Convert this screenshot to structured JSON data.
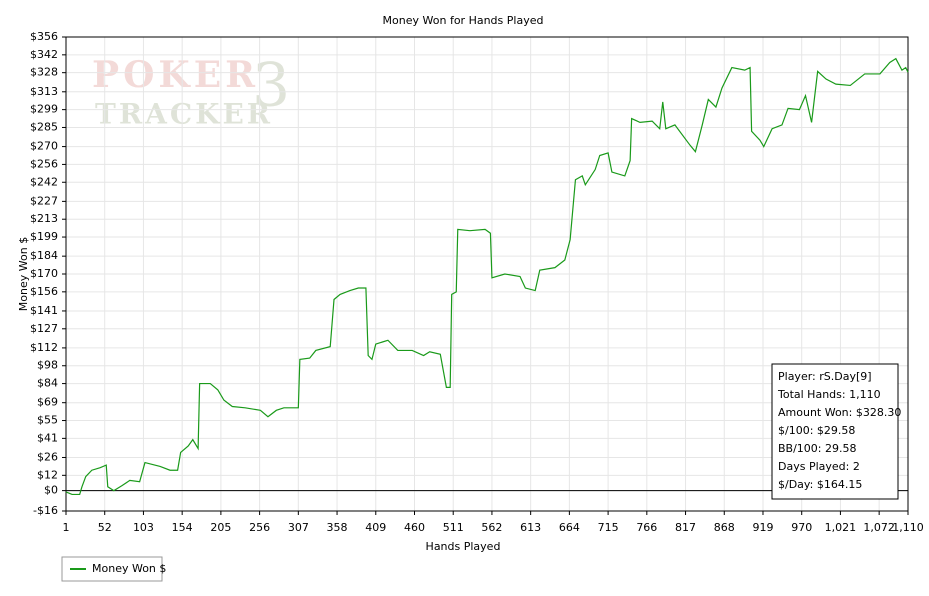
{
  "chart_data": {
    "type": "line",
    "title": "Money Won for Hands Played",
    "x_label": "Hands Played",
    "y_label": "Money Won $",
    "watermark": {
      "line1": "POKER",
      "line2": "TRACKER",
      "mark": "3"
    },
    "xlim": [
      1,
      1110
    ],
    "xticks": [
      1,
      52,
      103,
      154,
      205,
      256,
      307,
      358,
      409,
      460,
      511,
      562,
      613,
      664,
      715,
      766,
      817,
      868,
      919,
      970,
      {
        "value": 1021,
        "label": "1,021"
      },
      {
        "value": 1072,
        "label": "1,072"
      },
      {
        "value": 1110,
        "label": "1,110"
      }
    ],
    "ylim": [
      -16,
      356
    ],
    "yticks": [
      {
        "value": -16,
        "label": "-$16"
      },
      {
        "value": 0,
        "label": "$0"
      },
      {
        "value": 12,
        "label": "$12"
      },
      {
        "value": 26,
        "label": "$26"
      },
      {
        "value": 41,
        "label": "$41"
      },
      {
        "value": 55,
        "label": "$55"
      },
      {
        "value": 69,
        "label": "$69"
      },
      {
        "value": 84,
        "label": "$84"
      },
      {
        "value": 98,
        "label": "$98"
      },
      {
        "value": 112,
        "label": "$112"
      },
      {
        "value": 127,
        "label": "$127"
      },
      {
        "value": 141,
        "label": "$141"
      },
      {
        "value": 156,
        "label": "$156"
      },
      {
        "value": 170,
        "label": "$170"
      },
      {
        "value": 184,
        "label": "$184"
      },
      {
        "value": 199,
        "label": "$199"
      },
      {
        "value": 213,
        "label": "$213"
      },
      {
        "value": 227,
        "label": "$227"
      },
      {
        "value": 242,
        "label": "$242"
      },
      {
        "value": 256,
        "label": "$256"
      },
      {
        "value": 270,
        "label": "$270"
      },
      {
        "value": 285,
        "label": "$285"
      },
      {
        "value": 299,
        "label": "$299"
      },
      {
        "value": 313,
        "label": "$313"
      },
      {
        "value": 328,
        "label": "$328"
      },
      {
        "value": 342,
        "label": "$342"
      },
      {
        "value": 356,
        "label": "$356"
      }
    ],
    "grid": true,
    "legend": "bottom-left",
    "x": [
      1,
      9,
      19,
      22,
      27,
      35,
      46,
      54,
      56,
      64,
      75,
      85,
      98,
      105,
      125,
      138,
      148,
      152,
      162,
      168,
      175,
      177,
      191,
      201,
      209,
      220,
      237,
      257,
      267,
      278,
      288,
      307,
      309,
      322,
      330,
      349,
      354,
      362,
      375,
      386,
      396,
      399,
      404,
      409,
      425,
      438,
      457,
      472,
      480,
      494,
      502,
      507,
      509,
      515,
      517,
      533,
      553,
      560,
      562,
      579,
      599,
      606,
      619,
      625,
      645,
      658,
      665,
      672,
      681,
      685,
      698,
      704,
      715,
      720,
      737,
      744,
      746,
      757,
      773,
      783,
      787,
      791,
      803,
      823,
      830,
      839,
      847,
      857,
      865,
      878,
      895,
      902,
      904,
      915,
      920,
      931,
      944,
      952,
      967,
      975,
      983,
      991,
      1002,
      1015,
      1034,
      1053,
      1073,
      1086,
      1094,
      1102,
      1107,
      1110
    ],
    "series": [
      {
        "name": "Money Won $",
        "color": "#1a9a1a",
        "values": [
          -1,
          -3,
          -3,
          3,
          11,
          16,
          18,
          20,
          3,
          0,
          4,
          8,
          7,
          22,
          19,
          16,
          16,
          30,
          35,
          40,
          33,
          84,
          84,
          79,
          71,
          66,
          65,
          63,
          58,
          63,
          65,
          65,
          103,
          104,
          110,
          113,
          150,
          154,
          157,
          159,
          159,
          106,
          103,
          115,
          118,
          110,
          110,
          106,
          109,
          107,
          81,
          81,
          154,
          156,
          205,
          204,
          205,
          202,
          167,
          170,
          168,
          159,
          157,
          173,
          175,
          181,
          197,
          244,
          247,
          240,
          252,
          263,
          265,
          250,
          247,
          259,
          292,
          289,
          290,
          284,
          305,
          284,
          287,
          271,
          266,
          287,
          307,
          301,
          316,
          332,
          330,
          332,
          282,
          275,
          270,
          284,
          287,
          300,
          299,
          310,
          289,
          329,
          323,
          319,
          318,
          327,
          327,
          336,
          339,
          330,
          332,
          328.3
        ]
      }
    ],
    "info_box": [
      "Player: rS.Day[9]",
      "Total Hands: 1,110",
      "Amount Won: $328.30",
      "$/100: $29.58",
      "BB/100: 29.58",
      "Days Played: 2",
      "$/Day: $164.15"
    ]
  }
}
